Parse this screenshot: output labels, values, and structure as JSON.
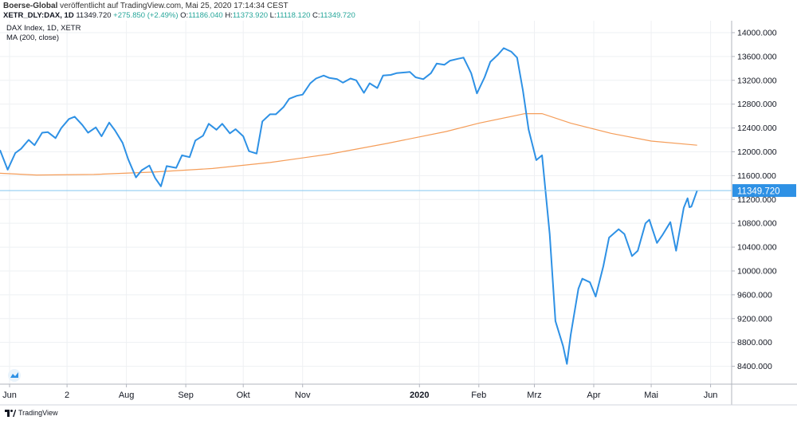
{
  "header": {
    "publisher": "Boerse-Global",
    "published_text": "veröffentlicht auf TradingView.com, Mai 25, 2020 17:14:34 CEST",
    "symbol": "XETR_DLY:DAX, 1D",
    "last": "11349.720",
    "change": "+275.850 (+2.49%)",
    "open_label": "O:",
    "open": "11186.040",
    "high_label": "H:",
    "high": "11373.920",
    "low_label": "L:",
    "low": "11118.120",
    "close_label": "C:",
    "close": "11349.720"
  },
  "footer": {
    "brand": "TradingView"
  },
  "colors": {
    "price": "#2e91e5",
    "ma": "#f59d59",
    "last_line": "#85c7f0",
    "label_bg": "#2e91e5"
  },
  "chart_data": {
    "type": "line",
    "legend": [
      "DAX Index, 1D, XETR",
      "MA (200, close)"
    ],
    "ylim": [
      8100,
      14200
    ],
    "yticks": [
      8400,
      8800,
      9200,
      9600,
      10000,
      10400,
      10800,
      11200,
      11600,
      12000,
      12400,
      12800,
      13200,
      13600,
      14000
    ],
    "ytick_labels": [
      "8400.000",
      "8800.000",
      "9200.000",
      "9600.000",
      "10000.000",
      "10400.000",
      "10800.000",
      "11200.000",
      "11600.000",
      "12000.000",
      "12400.000",
      "12800.000",
      "13200.000",
      "13600.000",
      "14000.000"
    ],
    "x_range": [
      "2019-05-27",
      "2020-06-12"
    ],
    "xticks": [
      {
        "date": "2019-06-01",
        "label": "Jun"
      },
      {
        "date": "2019-07-01",
        "label": "2"
      },
      {
        "date": "2019-08-01",
        "label": "Aug"
      },
      {
        "date": "2019-09-01",
        "label": "Sep"
      },
      {
        "date": "2019-10-01",
        "label": "Okt"
      },
      {
        "date": "2019-11-01",
        "label": "Nov"
      },
      {
        "date": "2020-01-01",
        "label": "2020"
      },
      {
        "date": "2020-02-01",
        "label": "Feb"
      },
      {
        "date": "2020-03-01",
        "label": "Mrz"
      },
      {
        "date": "2020-04-01",
        "label": "Apr"
      },
      {
        "date": "2020-05-01",
        "label": "Mai"
      },
      {
        "date": "2020-06-01",
        "label": "Jun"
      }
    ],
    "last_value_label": "11349.720",
    "last_value": 11349.72,
    "series": [
      {
        "name": "DAX Index, 1D, XETR",
        "points": [
          [
            "2019-05-27",
            12030
          ],
          [
            "2019-05-31",
            11700
          ],
          [
            "2019-06-04",
            11980
          ],
          [
            "2019-06-07",
            12050
          ],
          [
            "2019-06-11",
            12200
          ],
          [
            "2019-06-14",
            12110
          ],
          [
            "2019-06-18",
            12320
          ],
          [
            "2019-06-21",
            12330
          ],
          [
            "2019-06-25",
            12230
          ],
          [
            "2019-06-28",
            12400
          ],
          [
            "2019-07-02",
            12550
          ],
          [
            "2019-07-05",
            12590
          ],
          [
            "2019-07-09",
            12450
          ],
          [
            "2019-07-12",
            12320
          ],
          [
            "2019-07-16",
            12410
          ],
          [
            "2019-07-19",
            12260
          ],
          [
            "2019-07-23",
            12490
          ],
          [
            "2019-07-26",
            12360
          ],
          [
            "2019-07-30",
            12150
          ],
          [
            "2019-08-02",
            11870
          ],
          [
            "2019-08-06",
            11570
          ],
          [
            "2019-08-09",
            11690
          ],
          [
            "2019-08-13",
            11770
          ],
          [
            "2019-08-16",
            11560
          ],
          [
            "2019-08-19",
            11420
          ],
          [
            "2019-08-22",
            11760
          ],
          [
            "2019-08-27",
            11730
          ],
          [
            "2019-08-30",
            11940
          ],
          [
            "2019-09-03",
            11910
          ],
          [
            "2019-09-06",
            12190
          ],
          [
            "2019-09-10",
            12270
          ],
          [
            "2019-09-13",
            12470
          ],
          [
            "2019-09-17",
            12370
          ],
          [
            "2019-09-20",
            12470
          ],
          [
            "2019-09-24",
            12310
          ],
          [
            "2019-09-27",
            12380
          ],
          [
            "2019-10-01",
            12260
          ],
          [
            "2019-10-04",
            12010
          ],
          [
            "2019-10-08",
            11970
          ],
          [
            "2019-10-11",
            12510
          ],
          [
            "2019-10-15",
            12630
          ],
          [
            "2019-10-18",
            12630
          ],
          [
            "2019-10-22",
            12750
          ],
          [
            "2019-10-25",
            12890
          ],
          [
            "2019-10-29",
            12940
          ],
          [
            "2019-11-01",
            12960
          ],
          [
            "2019-11-05",
            13150
          ],
          [
            "2019-11-08",
            13230
          ],
          [
            "2019-11-12",
            13280
          ],
          [
            "2019-11-15",
            13240
          ],
          [
            "2019-11-19",
            13220
          ],
          [
            "2019-11-22",
            13160
          ],
          [
            "2019-11-26",
            13230
          ],
          [
            "2019-11-29",
            13200
          ],
          [
            "2019-12-03",
            12990
          ],
          [
            "2019-12-06",
            13150
          ],
          [
            "2019-12-10",
            13070
          ],
          [
            "2019-12-13",
            13280
          ],
          [
            "2019-12-17",
            13290
          ],
          [
            "2019-12-20",
            13320
          ],
          [
            "2019-12-27",
            13340
          ],
          [
            "2019-12-30",
            13250
          ],
          [
            "2020-01-03",
            13220
          ],
          [
            "2020-01-07",
            13320
          ],
          [
            "2020-01-10",
            13480
          ],
          [
            "2020-01-14",
            13460
          ],
          [
            "2020-01-17",
            13530
          ],
          [
            "2020-01-21",
            13560
          ],
          [
            "2020-01-24",
            13580
          ],
          [
            "2020-01-28",
            13320
          ],
          [
            "2020-01-31",
            12980
          ],
          [
            "2020-02-04",
            13250
          ],
          [
            "2020-02-07",
            13510
          ],
          [
            "2020-02-11",
            13630
          ],
          [
            "2020-02-14",
            13740
          ],
          [
            "2020-02-18",
            13680
          ],
          [
            "2020-02-21",
            13580
          ],
          [
            "2020-02-24",
            13030
          ],
          [
            "2020-02-27",
            12370
          ],
          [
            "2020-03-02",
            11860
          ],
          [
            "2020-03-05",
            11940
          ],
          [
            "2020-03-09",
            10620
          ],
          [
            "2020-03-12",
            9160
          ],
          [
            "2020-03-16",
            8740
          ],
          [
            "2020-03-18",
            8440
          ],
          [
            "2020-03-20",
            8930
          ],
          [
            "2020-03-24",
            9700
          ],
          [
            "2020-03-26",
            9870
          ],
          [
            "2020-03-30",
            9810
          ],
          [
            "2020-04-02",
            9570
          ],
          [
            "2020-04-06",
            10080
          ],
          [
            "2020-04-09",
            10560
          ],
          [
            "2020-04-14",
            10700
          ],
          [
            "2020-04-17",
            10620
          ],
          [
            "2020-04-21",
            10250
          ],
          [
            "2020-04-24",
            10340
          ],
          [
            "2020-04-28",
            10800
          ],
          [
            "2020-04-30",
            10860
          ],
          [
            "2020-05-04",
            10470
          ],
          [
            "2020-05-07",
            10610
          ],
          [
            "2020-05-11",
            10820
          ],
          [
            "2020-05-14",
            10340
          ],
          [
            "2020-05-18",
            11060
          ],
          [
            "2020-05-20",
            11220
          ],
          [
            "2020-05-21",
            11070
          ],
          [
            "2020-05-22",
            11080
          ],
          [
            "2020-05-25",
            11349.72
          ]
        ]
      },
      {
        "name": "MA (200, close)",
        "points": [
          [
            "2019-05-27",
            11640
          ],
          [
            "2019-06-15",
            11610
          ],
          [
            "2019-07-15",
            11620
          ],
          [
            "2019-08-15",
            11660
          ],
          [
            "2019-09-15",
            11720
          ],
          [
            "2019-10-15",
            11820
          ],
          [
            "2019-11-15",
            11960
          ],
          [
            "2019-12-15",
            12140
          ],
          [
            "2020-01-15",
            12340
          ],
          [
            "2020-02-01",
            12480
          ],
          [
            "2020-02-25",
            12640
          ],
          [
            "2020-03-05",
            12640
          ],
          [
            "2020-03-20",
            12480
          ],
          [
            "2020-04-10",
            12310
          ],
          [
            "2020-05-01",
            12180
          ],
          [
            "2020-05-25",
            12110
          ]
        ]
      }
    ]
  }
}
